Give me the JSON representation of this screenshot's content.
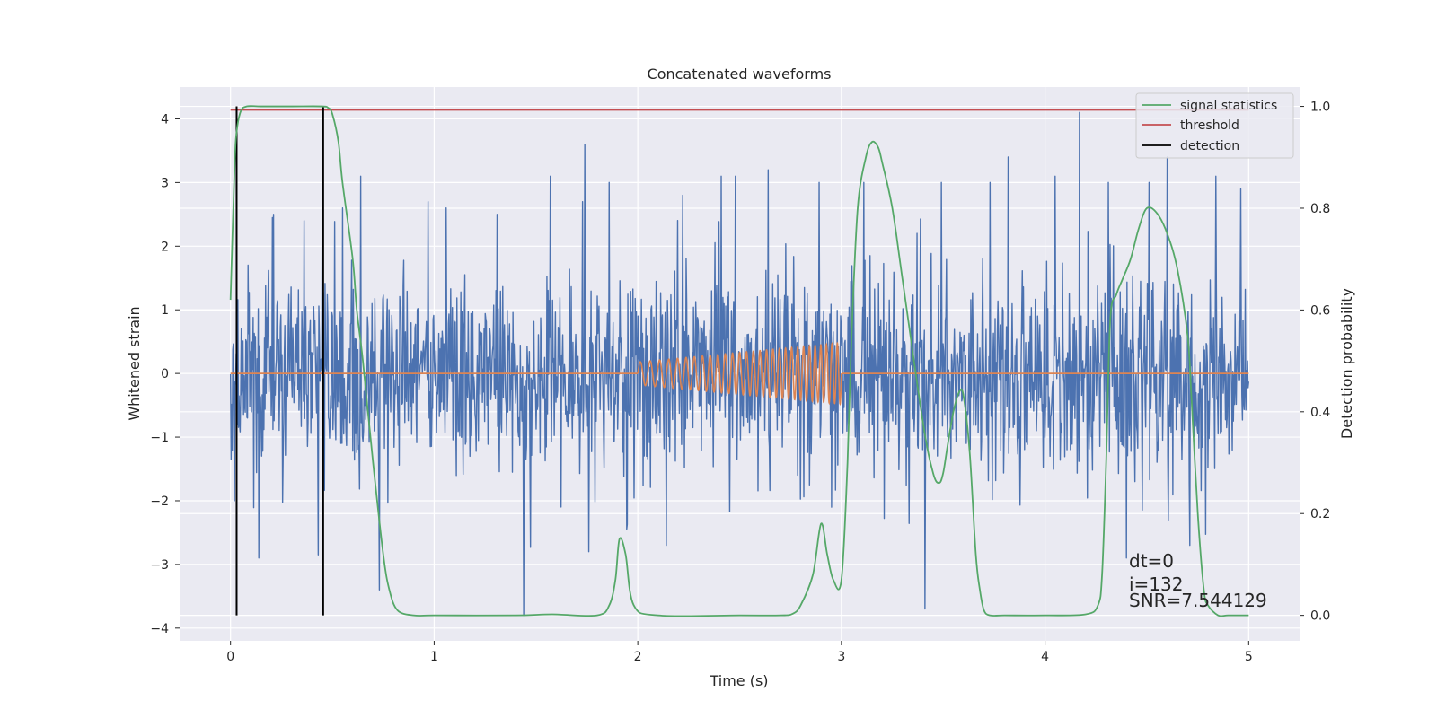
{
  "chart_data": {
    "type": "line",
    "title": "Concatenated waveforms",
    "xlabel": "Time (s)",
    "ylabel": "Whitened strain",
    "y2label": "Detection probability",
    "xlim": [
      -0.25,
      5.25
    ],
    "ylim": [
      -4.2,
      4.5
    ],
    "y2lim": [
      -0.05,
      1.038
    ],
    "xticks": [
      0,
      1,
      2,
      3,
      4,
      5
    ],
    "xtick_labels": [
      "0",
      "1",
      "2",
      "3",
      "4",
      "5"
    ],
    "yticks": [
      -4,
      -3,
      -2,
      -1,
      0,
      1,
      2,
      3,
      4
    ],
    "ytick_labels": [
      "−4",
      "−3",
      "−2",
      "−1",
      "0",
      "1",
      "2",
      "3",
      "4"
    ],
    "y2ticks": [
      0,
      0.2,
      0.4,
      0.6,
      0.8,
      1.0
    ],
    "y2tick_labels": [
      "0.0",
      "0.2",
      "0.4",
      "0.6",
      "0.8",
      "1.0"
    ],
    "grid": true,
    "legend_position": "top-right",
    "series": [
      {
        "name": "",
        "kind": "noise",
        "axis": "left",
        "color": "#4c72b0",
        "x_range": [
          0,
          5
        ],
        "approx_std": 0.8,
        "approx_range": [
          -3.8,
          4.1
        ],
        "spikes": [
          {
            "x": 0.02,
            "y": -2.0
          },
          {
            "x": 0.14,
            "y": -2.9
          },
          {
            "x": 0.21,
            "y": 2.5
          },
          {
            "x": 0.36,
            "y": 2.4
          },
          {
            "x": 0.43,
            "y": -2.85
          },
          {
            "x": 0.45,
            "y": 2.4
          },
          {
            "x": 0.55,
            "y": 2.6
          },
          {
            "x": 0.64,
            "y": 3.1
          },
          {
            "x": 0.73,
            "y": -3.4
          },
          {
            "x": 0.97,
            "y": 2.7
          },
          {
            "x": 1.06,
            "y": 2.6
          },
          {
            "x": 1.31,
            "y": 2.5
          },
          {
            "x": 1.44,
            "y": -3.8
          },
          {
            "x": 1.57,
            "y": 3.1
          },
          {
            "x": 1.73,
            "y": 2.7
          },
          {
            "x": 1.74,
            "y": 3.6
          },
          {
            "x": 1.76,
            "y": -2.8
          },
          {
            "x": 1.86,
            "y": 3.0
          },
          {
            "x": 2.14,
            "y": -2.7
          },
          {
            "x": 2.22,
            "y": 2.8
          },
          {
            "x": 2.41,
            "y": 3.1
          },
          {
            "x": 2.48,
            "y": 3.1
          },
          {
            "x": 2.64,
            "y": 3.2
          },
          {
            "x": 2.89,
            "y": 3.0
          },
          {
            "x": 3.11,
            "y": 3.0
          },
          {
            "x": 3.37,
            "y": 2.2
          },
          {
            "x": 3.41,
            "y": -3.7
          },
          {
            "x": 3.49,
            "y": 3.0
          },
          {
            "x": 3.73,
            "y": 3.0
          },
          {
            "x": 3.82,
            "y": 3.4
          },
          {
            "x": 4.05,
            "y": 3.1
          },
          {
            "x": 4.17,
            "y": 4.1
          },
          {
            "x": 4.31,
            "y": 3.0
          },
          {
            "x": 4.4,
            "y": -2.9
          },
          {
            "x": 4.51,
            "y": 3.0
          },
          {
            "x": 4.6,
            "y": 3.4
          },
          {
            "x": 4.71,
            "y": -2.7
          },
          {
            "x": 4.84,
            "y": 3.1
          },
          {
            "x": 4.96,
            "y": 2.9
          }
        ]
      },
      {
        "name": "",
        "kind": "chirp",
        "axis": "left",
        "color": "#dd8452",
        "flat_ranges": [
          [
            0,
            2
          ],
          [
            3,
            5
          ]
        ],
        "chirp_x_range": [
          2,
          3
        ],
        "chirp_amplitude_start": 0.18,
        "chirp_amplitude_end": 0.48,
        "chirp_freq_start_hz": 20,
        "chirp_freq_end_hz": 38
      },
      {
        "name": "signal statistics",
        "kind": "line",
        "axis": "right",
        "color": "#55a868",
        "x": [
          0.0,
          0.02,
          0.03,
          0.05,
          0.08,
          0.15,
          0.3,
          0.45,
          0.48,
          0.5,
          0.53,
          0.55,
          0.6,
          0.62,
          0.65,
          0.7,
          0.75,
          0.78,
          0.82,
          0.9,
          1.0,
          1.4,
          1.58,
          1.8,
          1.86,
          1.89,
          1.91,
          1.94,
          1.98,
          2.1,
          2.5,
          2.7,
          2.76,
          2.8,
          2.86,
          2.9,
          2.93,
          2.96,
          3.0,
          3.03,
          3.05,
          3.08,
          3.12,
          3.15,
          3.18,
          3.2,
          3.25,
          3.3,
          3.4,
          3.45,
          3.48,
          3.5,
          3.52,
          3.55,
          3.58,
          3.6,
          3.63,
          3.66,
          3.68,
          3.7,
          3.73,
          3.8,
          4.0,
          4.2,
          4.26,
          4.28,
          4.3,
          4.32,
          4.35,
          4.38,
          4.42,
          4.46,
          4.5,
          4.55,
          4.6,
          4.65,
          4.7,
          4.72,
          4.75,
          4.78,
          4.8,
          4.85,
          4.9,
          5.0
        ],
        "values": [
          0.62,
          0.88,
          0.95,
          0.99,
          1.0,
          1.0,
          1.0,
          1.0,
          0.997,
          0.985,
          0.93,
          0.85,
          0.7,
          0.6,
          0.5,
          0.3,
          0.12,
          0.05,
          0.01,
          0.0,
          0.0,
          0.0,
          0.002,
          0.0,
          0.02,
          0.07,
          0.15,
          0.12,
          0.02,
          0.0,
          0.0,
          0.0,
          0.003,
          0.02,
          0.08,
          0.18,
          0.12,
          0.07,
          0.07,
          0.3,
          0.55,
          0.8,
          0.9,
          0.93,
          0.92,
          0.89,
          0.8,
          0.66,
          0.38,
          0.28,
          0.26,
          0.28,
          0.33,
          0.4,
          0.44,
          0.43,
          0.32,
          0.12,
          0.05,
          0.01,
          0.0,
          0.0,
          0.0,
          0.002,
          0.02,
          0.08,
          0.3,
          0.58,
          0.63,
          0.66,
          0.7,
          0.76,
          0.8,
          0.79,
          0.75,
          0.68,
          0.55,
          0.42,
          0.2,
          0.05,
          0.02,
          0.0,
          0.0,
          0.0
        ]
      },
      {
        "name": "threshold",
        "kind": "hline",
        "axis": "right",
        "color": "#c44e52",
        "value": 0.993,
        "x_range": [
          0,
          5
        ]
      },
      {
        "name": "detection",
        "kind": "vlines",
        "axis": "right",
        "color": "#000000",
        "x": [
          0.03,
          0.455
        ],
        "y_range": [
          0,
          1.0
        ]
      }
    ],
    "annotations": [
      "dt=0",
      "i=132",
      "SNR=7.544129"
    ]
  }
}
